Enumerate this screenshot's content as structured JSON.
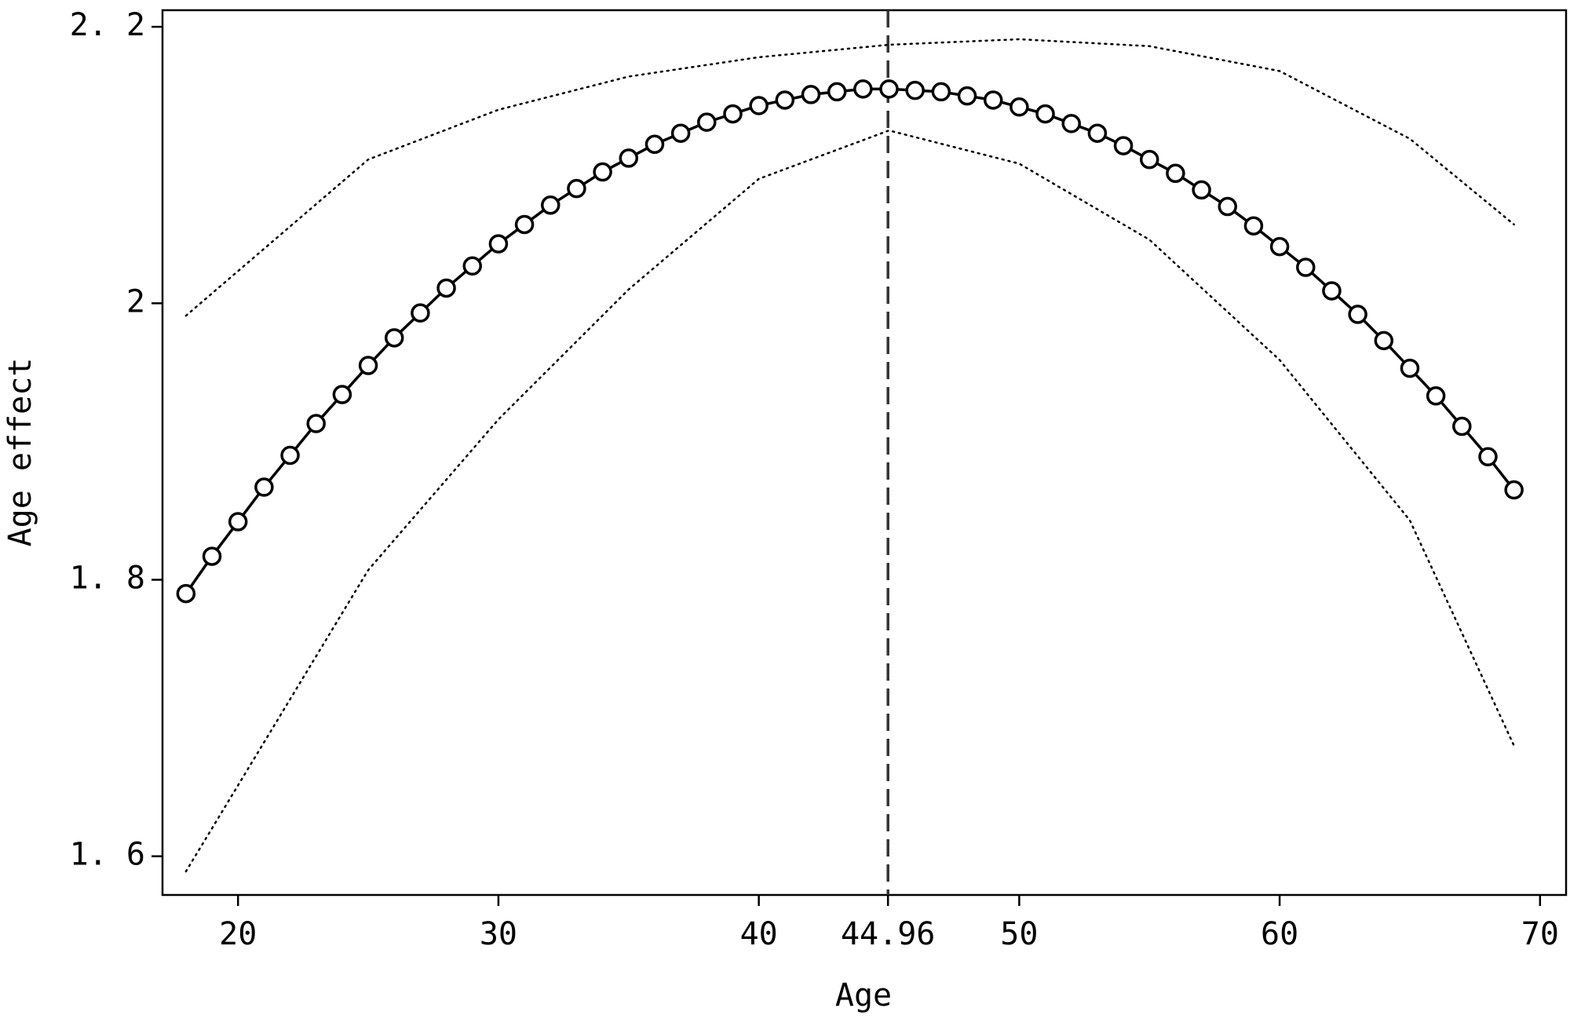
{
  "chart_data": {
    "type": "line",
    "x_label": "Age",
    "y_label": "Age effect",
    "x": [
      18,
      19,
      20,
      21,
      22,
      23,
      24,
      25,
      26,
      27,
      28,
      29,
      30,
      31,
      32,
      33,
      34,
      35,
      36,
      37,
      38,
      39,
      40,
      41,
      42,
      43,
      44,
      45,
      46,
      47,
      48,
      49,
      50,
      51,
      52,
      53,
      54,
      55,
      56,
      57,
      58,
      59,
      60,
      61,
      62,
      63,
      64,
      65,
      66,
      67,
      68,
      69
    ],
    "series": [
      {
        "color": "#000000",
        "style": "solid",
        "markers": true,
        "values": [
          1.79,
          1.817,
          1.842,
          1.867,
          1.89,
          1.913,
          1.934,
          1.955,
          1.975,
          1.993,
          2.011,
          2.027,
          2.043,
          2.057,
          2.071,
          2.083,
          2.095,
          2.105,
          2.115,
          2.123,
          2.131,
          2.137,
          2.143,
          2.147,
          2.151,
          2.153,
          2.155,
          2.155,
          2.154,
          2.153,
          2.15,
          2.147,
          2.142,
          2.137,
          2.13,
          2.123,
          2.114,
          2.104,
          2.094,
          2.082,
          2.07,
          2.056,
          2.041,
          2.026,
          2.009,
          1.992,
          1.973,
          1.953,
          1.933,
          1.911,
          1.889,
          1.865
        ]
      },
      {
        "color": "#000000",
        "style": "dotted",
        "markers": false,
        "x": [
          18,
          25,
          30,
          35,
          40,
          45,
          50,
          55,
          60,
          65,
          69
        ],
        "values": [
          1.991,
          2.104,
          2.14,
          2.164,
          2.178,
          2.187,
          2.191,
          2.186,
          2.168,
          2.119,
          2.057
        ]
      },
      {
        "color": "#000000",
        "style": "dotted",
        "markers": false,
        "x": [
          18,
          25,
          30,
          35,
          40,
          45,
          50,
          55,
          60,
          65,
          69
        ],
        "values": [
          1.589,
          1.807,
          1.916,
          2.01,
          2.09,
          2.125,
          2.101,
          2.046,
          1.959,
          1.843,
          1.68
        ]
      }
    ],
    "vline": 44.96,
    "xlim": [
      17.1,
      71.0
    ],
    "ylim": [
      1.572,
      2.212
    ],
    "xticks": [
      20,
      30,
      40,
      44.96,
      50,
      60,
      70
    ],
    "yticks": [
      {
        "value": 1.6,
        "label": "1. 6"
      },
      {
        "value": 1.8,
        "label": "1. 8"
      },
      2,
      {
        "value": 2.2,
        "label": "2. 2"
      }
    ]
  }
}
